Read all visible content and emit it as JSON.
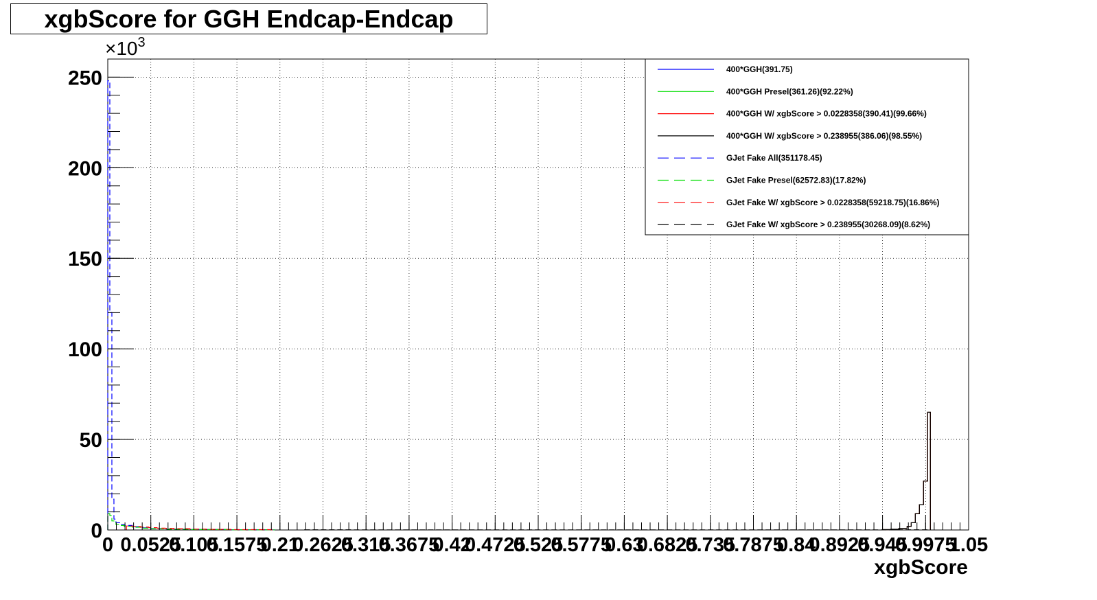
{
  "title": "xgbScore for GGH Endcap-Endcap",
  "chart_data": {
    "type": "line",
    "title": "xgbScore for GGH Endcap-Endcap",
    "xlabel": "xgbScore",
    "ylabel": "",
    "y_multiplier_label": "×10",
    "y_multiplier_exp": "3",
    "xlim": [
      0,
      1.05
    ],
    "ylim": [
      0,
      250
    ],
    "grid": true,
    "x_ticks": [
      {
        "value": 0,
        "label": "0"
      },
      {
        "value": 0.0525,
        "label": "0.0525"
      },
      {
        "value": 0.105,
        "label": "0.105"
      },
      {
        "value": 0.1575,
        "label": "0.1575"
      },
      {
        "value": 0.21,
        "label": "0.21"
      },
      {
        "value": 0.2625,
        "label": "0.2625"
      },
      {
        "value": 0.315,
        "label": "0.315"
      },
      {
        "value": 0.3675,
        "label": "0.3675"
      },
      {
        "value": 0.42,
        "label": "0.42"
      },
      {
        "value": 0.4725,
        "label": "0.4725"
      },
      {
        "value": 0.525,
        "label": "0.525"
      },
      {
        "value": 0.5775,
        "label": "0.5775"
      },
      {
        "value": 0.63,
        "label": "0.63"
      },
      {
        "value": 0.6825,
        "label": "0.6825"
      },
      {
        "value": 0.735,
        "label": "0.735"
      },
      {
        "value": 0.7875,
        "label": "0.7875"
      },
      {
        "value": 0.84,
        "label": "0.84"
      },
      {
        "value": 0.8925,
        "label": "0.8925"
      },
      {
        "value": 0.945,
        "label": "0.945"
      },
      {
        "value": 0.9975,
        "label": "0.9975"
      },
      {
        "value": 1.05,
        "label": "1.05"
      }
    ],
    "y_ticks": [
      {
        "value": 0,
        "label": "0"
      },
      {
        "value": 50,
        "label": "50"
      },
      {
        "value": 100,
        "label": "100"
      },
      {
        "value": 150,
        "label": "150"
      },
      {
        "value": 200,
        "label": "200"
      },
      {
        "value": 250,
        "label": "250"
      }
    ],
    "legend_position": "top-right",
    "series": [
      {
        "name": "400*GGH(391.75)",
        "color": "#0000ff",
        "dash": false,
        "x": [
          0.945,
          0.955,
          0.965,
          0.975,
          0.98,
          0.985,
          0.99,
          0.995,
          1.0
        ],
        "y": [
          0.2,
          0.4,
          0.9,
          2.0,
          4.0,
          9.0,
          14.0,
          27.0,
          65.0
        ]
      },
      {
        "name": "400*GGH Presel(361.26)(92.22%)",
        "color": "#00dd00",
        "dash": false,
        "x": [
          0.945,
          0.955,
          0.965,
          0.975,
          0.98,
          0.985,
          0.99,
          0.995,
          1.0
        ],
        "y": [
          0.2,
          0.4,
          0.9,
          2.0,
          4.0,
          9.0,
          14.0,
          27.0,
          65.0
        ]
      },
      {
        "name": "400*GGH W/ xgbScore > 0.0228358(390.41)(99.66%)",
        "color": "#ff0000",
        "dash": false,
        "x": [
          0.945,
          0.955,
          0.965,
          0.975,
          0.98,
          0.985,
          0.99,
          0.995,
          1.0
        ],
        "y": [
          0.2,
          0.4,
          0.9,
          2.0,
          4.0,
          9.0,
          14.0,
          27.0,
          65.0
        ]
      },
      {
        "name": "400*GGH W/ xgbScore > 0.238955(386.06)(98.55%)",
        "color": "#000000",
        "dash": false,
        "x": [
          0.945,
          0.955,
          0.965,
          0.975,
          0.98,
          0.985,
          0.99,
          0.995,
          1.0
        ],
        "y": [
          0.2,
          0.4,
          0.9,
          2.0,
          4.0,
          9.0,
          14.0,
          27.0,
          65.0
        ]
      },
      {
        "name": "GJet Fake All(351178.45)",
        "color": "#0000ff",
        "dash": true,
        "x": [
          0.0,
          0.0025,
          0.005,
          0.0075,
          0.01,
          0.015,
          0.02,
          0.03,
          0.04,
          0.05,
          0.07,
          0.1,
          0.15,
          0.2
        ],
        "y": [
          248,
          120,
          17,
          6,
          4,
          3,
          2.5,
          1.8,
          1.2,
          0.8,
          0.5,
          0.3,
          0.15,
          0.05
        ]
      },
      {
        "name": "GJet Fake Presel(62572.83)(17.82%)",
        "color": "#00dd00",
        "dash": true,
        "x": [
          0.0,
          0.0025,
          0.005,
          0.0075,
          0.01,
          0.015,
          0.02,
          0.03,
          0.04,
          0.05,
          0.07,
          0.1,
          0.15,
          0.2
        ],
        "y": [
          9,
          8,
          5,
          4,
          3,
          2.5,
          2,
          1.5,
          1.0,
          0.7,
          0.4,
          0.25,
          0.1,
          0.05
        ]
      },
      {
        "name": "GJet Fake W/ xgbScore > 0.0228358(59218.75)(16.86%)",
        "color": "#ff0000",
        "dash": true,
        "x": [
          0.0228,
          0.03,
          0.04,
          0.05,
          0.06,
          0.07,
          0.08,
          0.1,
          0.12,
          0.15,
          0.2
        ],
        "y": [
          2.2,
          1.9,
          1.6,
          1.3,
          1.0,
          0.9,
          0.7,
          0.5,
          0.35,
          0.2,
          0.05
        ]
      },
      {
        "name": "GJet Fake W/ xgbScore > 0.238955(30268.09)(8.62%)",
        "color": "#000000",
        "dash": true,
        "x": [
          0.24,
          0.3,
          0.4,
          0.5,
          0.6,
          0.7,
          0.8,
          0.9,
          0.95,
          1.0
        ],
        "y": [
          0.1,
          0.08,
          0.06,
          0.05,
          0.05,
          0.05,
          0.06,
          0.08,
          0.1,
          0.12
        ]
      }
    ]
  }
}
